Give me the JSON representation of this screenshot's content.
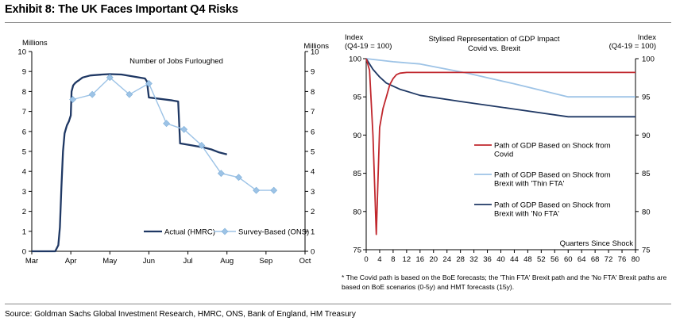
{
  "title": "Exhibit 8: The UK Faces Important Q4 Risks",
  "source": "Source: Goldman Sachs Global Investment Research, HMRC, ONS, Bank of England, HM Treasury",
  "chart_data": [
    {
      "type": "line",
      "title": "Number of Jobs Furloughed",
      "left_axis_unit": "Millions",
      "right_axis_unit": "Millions",
      "ylim": [
        0,
        10
      ],
      "yticks": [
        0,
        1,
        2,
        3,
        4,
        5,
        6,
        7,
        8,
        9,
        10
      ],
      "x_axis": "months",
      "xlim": [
        0,
        7
      ],
      "xtick_positions": [
        0,
        1,
        2,
        3,
        4,
        5,
        6,
        7
      ],
      "xtick_labels": [
        "Mar",
        "Apr",
        "May",
        "Jun",
        "Jul",
        "Aug",
        "Sep",
        "Oct"
      ],
      "grid": false,
      "legend_placement": "bottom-right",
      "series": [
        {
          "name": "Actual (HMRC)",
          "color": "#1f3864",
          "style": "solid-line",
          "points": [
            [
              0,
              0
            ],
            [
              0.6,
              0
            ],
            [
              0.68,
              0.3
            ],
            [
              0.72,
              1.2
            ],
            [
              0.76,
              3.2
            ],
            [
              0.8,
              5.0
            ],
            [
              0.84,
              5.9
            ],
            [
              0.9,
              6.3
            ],
            [
              0.95,
              6.5
            ],
            [
              1.0,
              6.8
            ],
            [
              1.02,
              8.0
            ],
            [
              1.06,
              8.3
            ],
            [
              1.1,
              8.4
            ],
            [
              1.16,
              8.5
            ],
            [
              1.2,
              8.55
            ],
            [
              1.3,
              8.7
            ],
            [
              1.5,
              8.8
            ],
            [
              1.8,
              8.85
            ],
            [
              2.0,
              8.87
            ],
            [
              2.3,
              8.85
            ],
            [
              2.6,
              8.75
            ],
            [
              2.9,
              8.65
            ],
            [
              2.95,
              8.5
            ],
            [
              3.0,
              7.7
            ],
            [
              3.2,
              7.65
            ],
            [
              3.6,
              7.55
            ],
            [
              3.75,
              7.5
            ],
            [
              3.8,
              5.4
            ],
            [
              4.1,
              5.3
            ],
            [
              4.4,
              5.2
            ],
            [
              4.6,
              5.1
            ],
            [
              4.8,
              4.95
            ],
            [
              5.0,
              4.85
            ]
          ]
        },
        {
          "name": "Survey-Based (ONS)",
          "color": "#9dc3e6",
          "style": "line-diamond-markers",
          "points": [
            [
              1.05,
              7.6
            ],
            [
              1.55,
              7.85
            ],
            [
              2.0,
              8.7
            ],
            [
              2.5,
              7.85
            ],
            [
              3.0,
              8.4
            ],
            [
              3.45,
              6.4
            ],
            [
              3.9,
              6.1
            ],
            [
              4.35,
              5.3
            ],
            [
              4.85,
              3.9
            ],
            [
              5.3,
              3.7
            ],
            [
              5.75,
              3.05
            ],
            [
              6.2,
              3.05
            ]
          ]
        }
      ]
    },
    {
      "type": "line",
      "title": "Stylised Representation of GDP Impact",
      "subtitle": "Covid vs. Brexit",
      "left_axis_unit": "Index\n(Q4-19 = 100)",
      "right_axis_unit": "Index\n(Q4-19 = 100)",
      "xlabel": "Quarters Since Shock",
      "ylim": [
        75,
        100
      ],
      "yticks": [
        75,
        80,
        85,
        90,
        95,
        100
      ],
      "xlim": [
        0,
        80
      ],
      "xticks": [
        0,
        4,
        8,
        12,
        16,
        20,
        24,
        28,
        32,
        36,
        40,
        44,
        48,
        52,
        56,
        60,
        64,
        68,
        72,
        76,
        80
      ],
      "grid": false,
      "legend_placement": "right",
      "series": [
        {
          "name": "Path of GDP Based on Shock from\nCovid",
          "color": "#c0272d",
          "points": [
            [
              0,
              100
            ],
            [
              1,
              98.5
            ],
            [
              2,
              90
            ],
            [
              3,
              77
            ],
            [
              4,
              91
            ],
            [
              5,
              93.5
            ],
            [
              6,
              95
            ],
            [
              7,
              96.6
            ],
            [
              8,
              97.4
            ],
            [
              9,
              97.9
            ],
            [
              10,
              98.1
            ],
            [
              12,
              98.2
            ],
            [
              80,
              98.2
            ]
          ]
        },
        {
          "name": "Path of GDP Based on Shock from\nBrexit with 'Thin FTA'",
          "color": "#9dc3e6",
          "points": [
            [
              0,
              100
            ],
            [
              8,
              99.6
            ],
            [
              16,
              99.3
            ],
            [
              30,
              98.1
            ],
            [
              44,
              96.7
            ],
            [
              60,
              95.0
            ],
            [
              80,
              95.0
            ]
          ]
        },
        {
          "name": "Path of GDP Based on Shock from\nBrexit with 'No FTA'",
          "color": "#1f3864",
          "points": [
            [
              0,
              100
            ],
            [
              2,
              98.6
            ],
            [
              4,
              97.6
            ],
            [
              6,
              96.8
            ],
            [
              10,
              96.0
            ],
            [
              16,
              95.2
            ],
            [
              28,
              94.4
            ],
            [
              44,
              93.4
            ],
            [
              60,
              92.4
            ],
            [
              80,
              92.4
            ]
          ]
        }
      ],
      "footnote": "* The Covid path is based on the BoE forecasts; the 'Thin FTA' Brexit path and the 'No FTA' Brexit paths are based on BoE scenarios (0-5y) and HMT forecasts (15y)."
    }
  ]
}
